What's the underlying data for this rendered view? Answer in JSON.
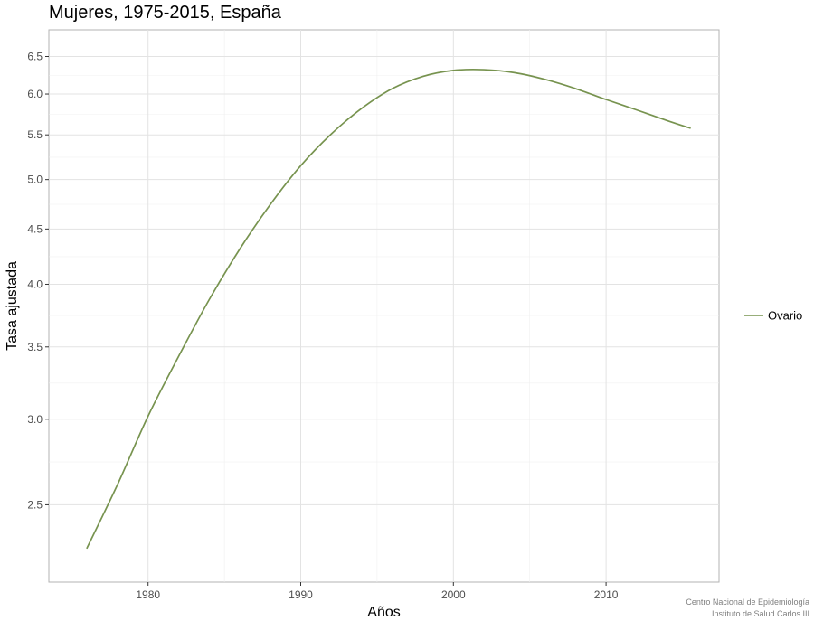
{
  "chart_data": {
    "type": "line",
    "title": "Mujeres, 1975-2015,  España",
    "xlabel": "Años",
    "ylabel": "Tasa ajustada",
    "y_scale": "log",
    "xlim": [
      1973.5,
      2017.4
    ],
    "ylim": [
      2.12,
      6.88
    ],
    "x_ticks": [
      1980,
      1990,
      2000,
      2010
    ],
    "y_ticks": [
      2.5,
      3.0,
      3.5,
      4.0,
      4.5,
      5.0,
      5.5,
      6.0,
      6.5
    ],
    "y_tick_labels": [
      "2.5",
      "3.0",
      "3.5",
      "4.0",
      "4.5",
      "5.0",
      "5.5",
      "6.0",
      "6.5"
    ],
    "grid": true,
    "legend_position": "right",
    "series": [
      {
        "name": "Ovario",
        "color": "#77934f",
        "x": [
          1976,
          1978,
          1980,
          1982,
          1984,
          1986,
          1988,
          1990,
          1992,
          1994,
          1996,
          1998,
          2000,
          2002,
          2004,
          2006,
          2008,
          2010,
          2012,
          2014,
          2015.5
        ],
        "y": [
          2.28,
          2.61,
          3.02,
          3.43,
          3.87,
          4.31,
          4.74,
          5.15,
          5.51,
          5.82,
          6.07,
          6.23,
          6.31,
          6.32,
          6.28,
          6.19,
          6.07,
          5.93,
          5.8,
          5.67,
          5.58
        ]
      }
    ]
  },
  "caption": {
    "line1": "Centro Nacional de Epidemiología",
    "line2": "Instituto de Salud Carlos III"
  }
}
